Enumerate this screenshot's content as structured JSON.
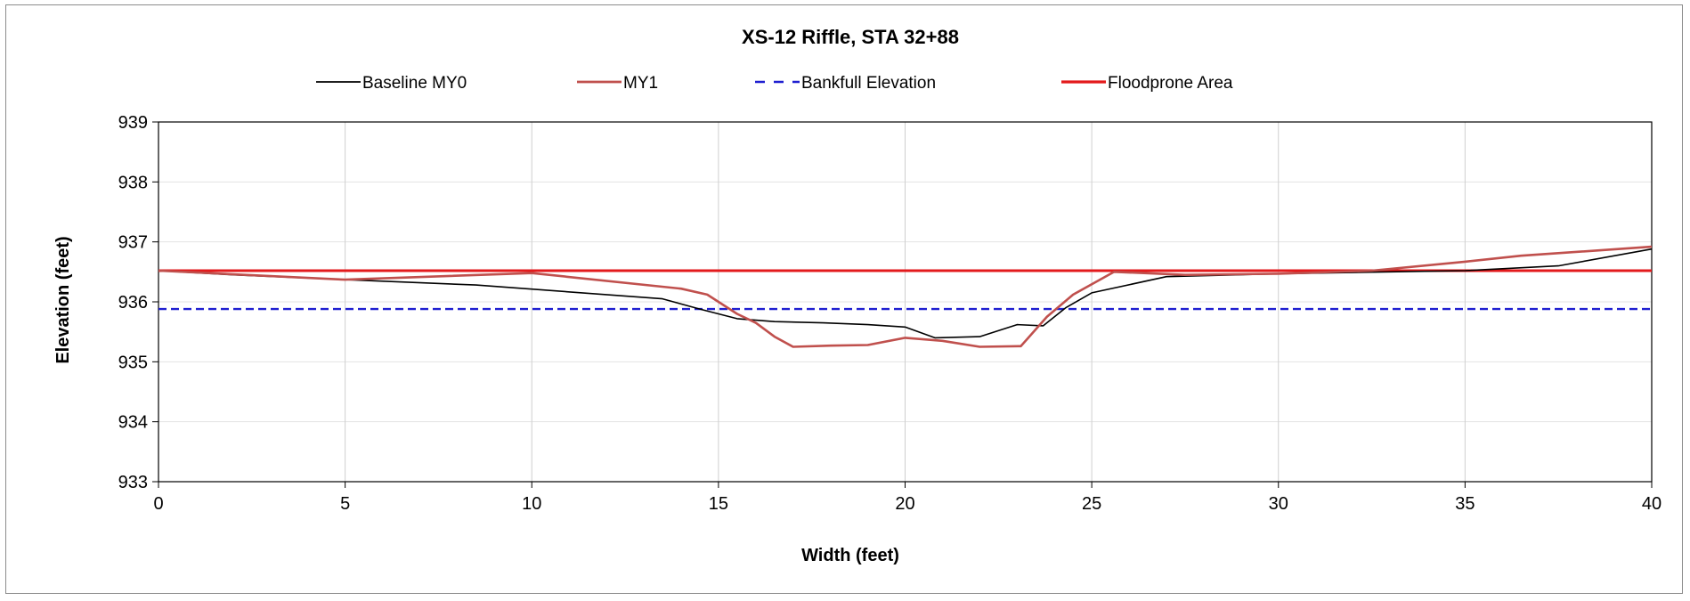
{
  "chart_data": {
    "type": "line",
    "title": "XS-12 Riffle, STA 32+88",
    "xlabel": "Width (feet)",
    "ylabel": "Elevation (feet)",
    "xlim": [
      0,
      40
    ],
    "ylim": [
      933,
      939
    ],
    "xticks": [
      "0",
      "5",
      "10",
      "15",
      "20",
      "25",
      "30",
      "35",
      "40"
    ],
    "yticks": [
      "933",
      "934",
      "935",
      "936",
      "937",
      "938",
      "939"
    ],
    "grid": "vertical",
    "legend_position": "top",
    "series": [
      {
        "name": "Baseline MY0",
        "color": "#000000",
        "style": "solid",
        "points": [
          [
            0,
            936.52
          ],
          [
            2,
            936.45
          ],
          [
            5,
            936.37
          ],
          [
            8.5,
            936.28
          ],
          [
            13.5,
            936.05
          ],
          [
            14.5,
            935.88
          ],
          [
            15.5,
            935.72
          ],
          [
            16.5,
            935.67
          ],
          [
            17.8,
            935.65
          ],
          [
            19,
            935.62
          ],
          [
            20,
            935.58
          ],
          [
            20.8,
            935.4
          ],
          [
            22,
            935.42
          ],
          [
            23,
            935.62
          ],
          [
            23.7,
            935.6
          ],
          [
            24.3,
            935.9
          ],
          [
            25,
            936.15
          ],
          [
            27,
            936.42
          ],
          [
            30,
            936.47
          ],
          [
            33,
            936.5
          ],
          [
            35,
            936.52
          ],
          [
            37.5,
            936.6
          ],
          [
            40,
            936.88
          ]
        ]
      },
      {
        "name": "MY1",
        "color": "#c0504d",
        "style": "solid",
        "points": [
          [
            0,
            936.52
          ],
          [
            5,
            936.37
          ],
          [
            10,
            936.48
          ],
          [
            14,
            936.22
          ],
          [
            14.7,
            936.12
          ],
          [
            15.5,
            935.8
          ],
          [
            16,
            935.65
          ],
          [
            16.5,
            935.42
          ],
          [
            17,
            935.25
          ],
          [
            18,
            935.27
          ],
          [
            19,
            935.28
          ],
          [
            20,
            935.4
          ],
          [
            21,
            935.35
          ],
          [
            22,
            935.25
          ],
          [
            23.1,
            935.26
          ],
          [
            23.8,
            935.75
          ],
          [
            24.5,
            936.12
          ],
          [
            25.6,
            936.5
          ],
          [
            27.5,
            936.45
          ],
          [
            30,
            936.47
          ],
          [
            32.5,
            936.52
          ],
          [
            35,
            936.67
          ],
          [
            36.5,
            936.77
          ],
          [
            40,
            936.92
          ]
        ]
      },
      {
        "name": "Bankfull Elevation",
        "color": "#1f1fd0",
        "style": "dashed",
        "points": [
          [
            0,
            935.88
          ],
          [
            40,
            935.88
          ]
        ]
      },
      {
        "name": "Floodprone Area",
        "color": "#e31a1c",
        "style": "solid",
        "points": [
          [
            0,
            936.52
          ],
          [
            40,
            936.52
          ]
        ]
      }
    ]
  }
}
